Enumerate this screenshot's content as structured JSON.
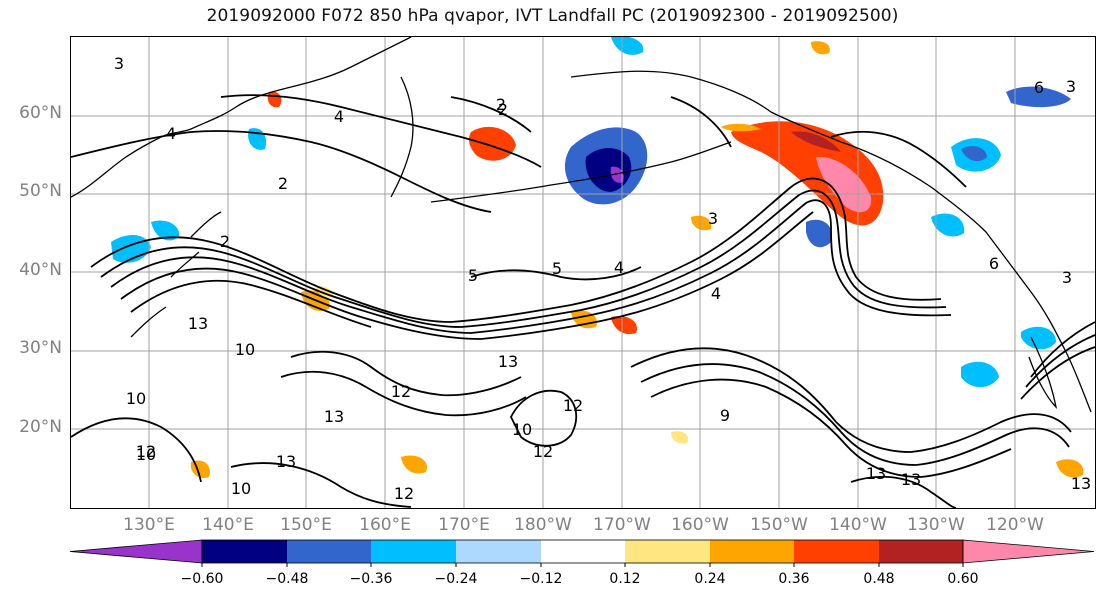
{
  "title": "2019092000 F072 850 hPa qvapor, IVT Landfall PC (2019092300 - 2019092500)",
  "lat_labels": [
    "60°N",
    "50°N",
    "40°N",
    "30°N",
    "20°N"
  ],
  "lon_labels": [
    "130°E",
    "140°E",
    "150°E",
    "160°E",
    "170°E",
    "180°W",
    "170°W",
    "160°W",
    "150°W",
    "140°W",
    "130°W",
    "120°W"
  ],
  "colorbar": {
    "colors": [
      "#9933cc",
      "#000080",
      "#3366cc",
      "#00bfff",
      "#add8ff",
      "#ffffff",
      "#ffe680",
      "#ffa500",
      "#ff4000",
      "#b22222",
      "#ff88aa"
    ],
    "tick_labels": [
      "−0.60",
      "−0.48",
      "−0.36",
      "−0.24",
      "−0.12",
      "0.12",
      "0.24",
      "0.36",
      "0.48",
      "0.60"
    ]
  },
  "contour_labels": [
    "3",
    "4",
    "2",
    "2",
    "4",
    "2",
    "5",
    "5",
    "4",
    "4",
    "3",
    "3",
    "13",
    "10",
    "10",
    "12",
    "13",
    "13",
    "12",
    "13",
    "12",
    "10",
    "12",
    "10",
    "9",
    "13",
    "13",
    "6",
    "6",
    "3",
    "2",
    "13",
    "12",
    "10"
  ],
  "colors": {
    "neg_strong": "#000080",
    "neg_mid": "#3366cc",
    "neg_light": "#00bfff",
    "pos_light": "#ffe680",
    "pos_mid": "#ffa500",
    "pos_strong": "#ff4000",
    "pos_max": "#ff88aa"
  }
}
